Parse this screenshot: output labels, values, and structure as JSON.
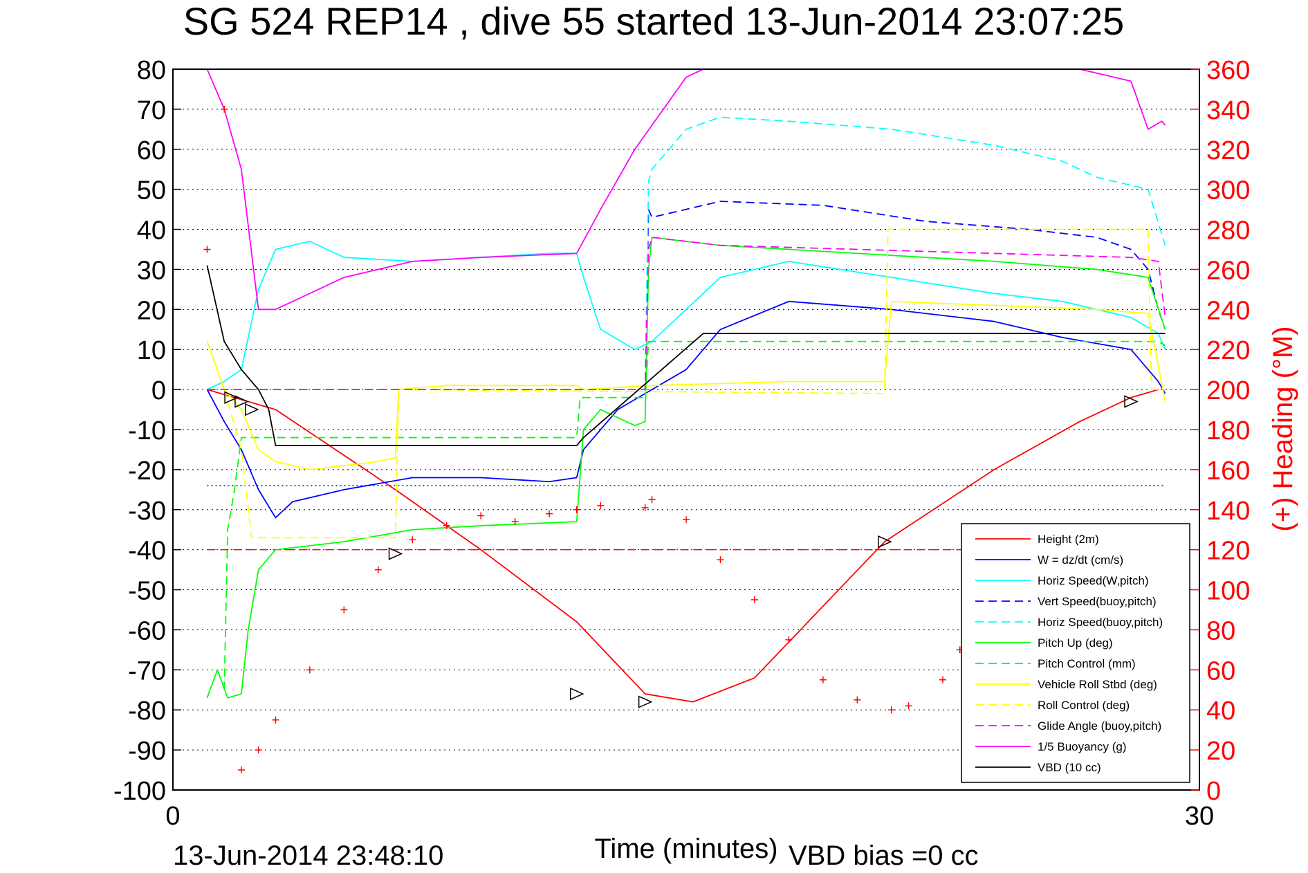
{
  "chart_data": {
    "type": "line",
    "title": "SG 524   REP14   , dive 55 started 13-Jun-2014 23:07:25",
    "xlabel": "Time (minutes)",
    "ylabel_right": "(+) Heading (°M)",
    "footer_left": "13-Jun-2014 23:48:10",
    "footer_right": "VBD bias =0 cc",
    "xlim": [
      0,
      30
    ],
    "ylim": [
      -100,
      80
    ],
    "y2lim": [
      0,
      360
    ],
    "x_ticks": [
      0,
      30
    ],
    "y_ticks": [
      80,
      70,
      60,
      50,
      40,
      30,
      20,
      10,
      0,
      -10,
      -20,
      -30,
      -40,
      -50,
      -60,
      -70,
      -80,
      -90,
      -100
    ],
    "y2_ticks": [
      360,
      340,
      320,
      300,
      280,
      260,
      240,
      220,
      200,
      180,
      160,
      140,
      120,
      100,
      80,
      60,
      40,
      20,
      0
    ],
    "grid": "horizontal dotted",
    "legend_position": "bottom-right",
    "colors": {
      "red": "#ff0000",
      "blue": "#0000ff",
      "cyan": "#00ffff",
      "green": "#00ff00",
      "yellow": "#ffff00",
      "magenta": "#ff00ff",
      "black": "#000000"
    },
    "series": [
      {
        "name": "Height (2m)",
        "color": "#ff0000",
        "style": "solid",
        "x": [
          1.0,
          3.0,
          6.5,
          9.0,
          11.8,
          13.8,
          15.2,
          17.0,
          20.8,
          24.0,
          26.5,
          28.0,
          28.8
        ],
        "y": [
          0,
          -5,
          -25,
          -40,
          -58,
          -76,
          -78,
          -72,
          -38,
          -20,
          -8,
          -2,
          0
        ]
      },
      {
        "name": "W = dz/dt (cm/s)",
        "color": "#0000ff",
        "style": "solid",
        "x": [
          1.0,
          1.5,
          2.0,
          2.5,
          3.0,
          3.5,
          5.0,
          7.0,
          9.0,
          11.0,
          11.8,
          12.0,
          13.0,
          14.0,
          15.0,
          16.0,
          18.0,
          21.0,
          24.0,
          26.0,
          28.0,
          28.8,
          29.0
        ],
        "y": [
          0,
          -8,
          -15,
          -25,
          -32,
          -28,
          -25,
          -22,
          -22,
          -23,
          -22,
          -15,
          -5,
          0,
          5,
          15,
          22,
          20,
          17,
          13,
          10,
          2,
          -1
        ]
      },
      {
        "name": "Horiz Speed(W,pitch)",
        "color": "#00ffff",
        "style": "solid",
        "x": [
          1.0,
          1.5,
          2.0,
          2.5,
          3.0,
          4.0,
          5.0,
          7.0,
          9.0,
          11.0,
          11.8,
          12.0,
          12.5,
          13.5,
          14.0,
          15.0,
          16.0,
          18.0,
          21.0,
          24.0,
          26.0,
          28.0,
          28.8,
          29.0
        ],
        "y": [
          0,
          2,
          5,
          25,
          35,
          37,
          33,
          32,
          33,
          34,
          34,
          28,
          15,
          10,
          12,
          20,
          28,
          32,
          28,
          24,
          22,
          18,
          14,
          10
        ]
      },
      {
        "name": "Vert Speed(buoy,pitch)",
        "color": "#0000ff",
        "style": "dashed",
        "x": [
          1.0,
          13.8,
          13.9,
          14.0,
          16.0,
          19.0,
          22.0,
          25.0,
          27.0,
          28.0,
          28.5,
          28.8,
          29.0
        ],
        "y": [
          0,
          0,
          45,
          43,
          47,
          46,
          42,
          40,
          38,
          35,
          30,
          20,
          15
        ]
      },
      {
        "name": "Horiz Speed(buoy,pitch)",
        "color": "#00ffff",
        "style": "dashed",
        "x": [
          1.0,
          13.8,
          13.9,
          14.0,
          15.0,
          16.0,
          18.0,
          21.0,
          24.0,
          26.0,
          27.0,
          28.0,
          28.5,
          29.0
        ],
        "y": [
          0,
          0,
          52,
          55,
          65,
          68,
          67,
          65,
          61,
          57,
          53,
          51,
          50,
          36
        ]
      },
      {
        "name": "Pitch Up (deg)",
        "color": "#00ff00",
        "style": "solid",
        "x": [
          1.0,
          1.3,
          1.6,
          2.0,
          2.2,
          2.5,
          3.0,
          5.0,
          7.0,
          9.0,
          11.8,
          12.0,
          12.5,
          13.5,
          13.8,
          13.9,
          14.0,
          16.0,
          20.0,
          24.0,
          27.0,
          28.5,
          29.0
        ],
        "y": [
          -77,
          -70,
          -77,
          -76,
          -60,
          -45,
          -40,
          -38,
          -35,
          -34,
          -33,
          -10,
          -5,
          -9,
          -8,
          30,
          38,
          36,
          34,
          32,
          30,
          28,
          15
        ]
      },
      {
        "name": "Pitch Control (mm)",
        "color": "#00ff00",
        "style": "dashed",
        "x": [
          1.5,
          1.6,
          1.8,
          2.0,
          3.0,
          11.8,
          11.9,
          13.8,
          13.9,
          20.8,
          20.9,
          28.8,
          29.0
        ],
        "y": [
          -75,
          -35,
          -25,
          -12,
          -12,
          -12,
          -2,
          -2,
          12,
          12,
          12,
          12,
          11
        ]
      },
      {
        "name": "Vehicle Roll Stbd (deg)",
        "color": "#ffff00",
        "style": "solid",
        "x": [
          1.0,
          1.5,
          2.0,
          2.5,
          3.0,
          4.0,
          5.0,
          6.0,
          6.5,
          6.6,
          8.0,
          11.0,
          11.8,
          12.0,
          14.0,
          18.0,
          20.8,
          21.0,
          24.0,
          27.0,
          28.5,
          29.0
        ],
        "y": [
          12,
          0,
          -5,
          -15,
          -18,
          -20,
          -19,
          -18,
          -17,
          0,
          1,
          1,
          1,
          0,
          1,
          2,
          2,
          22,
          21,
          20,
          19,
          -3
        ]
      },
      {
        "name": "Roll Control (deg)",
        "color": "#ffff00",
        "style": "dashed",
        "x": [
          1.5,
          2.0,
          2.3,
          6.5,
          6.6,
          20.8,
          20.9,
          28.5,
          28.6,
          29.0
        ],
        "y": [
          0,
          -15,
          -37,
          -37,
          0,
          -1,
          40,
          40,
          0,
          0
        ]
      },
      {
        "name": "Glide Angle (buoy,pitch)",
        "color": "#ff00ff",
        "style": "dashed",
        "x": [
          1.0,
          13.8,
          13.9,
          14.0,
          16.0,
          20.0,
          24.0,
          28.0,
          28.8,
          29.0
        ],
        "y": [
          0,
          0,
          35,
          38,
          36,
          35,
          34,
          33,
          32,
          18
        ]
      },
      {
        "name": "1/5 Buoyancy (g)",
        "color": "#ff00ff",
        "style": "solid",
        "x": [
          1.0,
          1.5,
          2.0,
          2.5,
          3.0,
          5.0,
          7.0,
          9.0,
          11.8,
          12.5,
          13.5,
          14.5,
          15.0,
          15.5,
          26.5,
          27.0,
          28.0,
          28.5,
          28.9,
          29.0
        ],
        "y": [
          80,
          70,
          55,
          20,
          20,
          28,
          32,
          33,
          34,
          45,
          60,
          72,
          78,
          80,
          80,
          79,
          77,
          65,
          67,
          66
        ]
      },
      {
        "name": "VBD (10 cc)",
        "color": "#000000",
        "style": "solid",
        "x": [
          1.0,
          1.5,
          2.0,
          2.5,
          2.8,
          3.0,
          11.8,
          12.0,
          15.5,
          28.8,
          29.0
        ],
        "y": [
          31,
          12,
          5,
          0,
          -5,
          -14,
          -14,
          -12,
          14,
          14,
          14
        ]
      },
      {
        "name": "Heading",
        "color": "#ff0000",
        "style": "markers",
        "axis": "right",
        "x": [
          1.0,
          1.5,
          2.0,
          2.5,
          3.0,
          4.0,
          5.0,
          6.0,
          7.0,
          8.0,
          9.0,
          10.0,
          11.0,
          11.8,
          12.5,
          13.8,
          14.0,
          15.0,
          16.0,
          17.0,
          18.0,
          19.0,
          20.0,
          21.0,
          21.5,
          22.5,
          23.0,
          24.0
        ],
        "y": [
          270,
          340,
          10,
          20,
          35,
          60,
          90,
          110,
          125,
          132,
          137,
          134,
          138,
          140,
          142,
          141,
          145,
          135,
          115,
          95,
          75,
          55,
          45,
          40,
          42,
          55,
          70,
          85
        ]
      }
    ],
    "reference_lines": [
      {
        "y2": 120,
        "color": "#ff0000",
        "style": "dashed"
      },
      {
        "y": -24,
        "color": "#0000ff",
        "style": "dotted"
      }
    ],
    "legend": [
      {
        "label": "Height (2m)",
        "color": "#ff0000",
        "style": "solid"
      },
      {
        "label": "W = dz/dt (cm/s)",
        "color": "#0000ff",
        "style": "solid"
      },
      {
        "label": "Horiz Speed(W,pitch)",
        "color": "#00ffff",
        "style": "solid"
      },
      {
        "label": "Vert Speed(buoy,pitch)",
        "color": "#0000ff",
        "style": "dashed"
      },
      {
        "label": "Horiz Speed(buoy,pitch)",
        "color": "#00ffff",
        "style": "dashed"
      },
      {
        "label": "Pitch Up (deg)",
        "color": "#00ff00",
        "style": "solid"
      },
      {
        "label": "Pitch Control (mm)",
        "color": "#00ff00",
        "style": "dashed"
      },
      {
        "label": "Vehicle Roll Stbd (deg)",
        "color": "#ffff00",
        "style": "solid"
      },
      {
        "label": "Roll Control (deg)",
        "color": "#ffff00",
        "style": "dashed"
      },
      {
        "label": "Glide Angle (buoy,pitch)",
        "color": "#ff00ff",
        "style": "dashed"
      },
      {
        "label": "1/5 Buoyancy (g)",
        "color": "#ff00ff",
        "style": "solid"
      },
      {
        "label": "VBD (10 cc)",
        "color": "#000000",
        "style": "solid"
      }
    ],
    "markers": [
      {
        "x": 1.7,
        "y": -2
      },
      {
        "x": 2.0,
        "y": -3
      },
      {
        "x": 2.3,
        "y": -5
      },
      {
        "x": 6.5,
        "y": -41
      },
      {
        "x": 11.8,
        "y": -76
      },
      {
        "x": 13.8,
        "y": -78
      },
      {
        "x": 20.8,
        "y": -38
      },
      {
        "x": 28.0,
        "y": -3
      }
    ]
  }
}
